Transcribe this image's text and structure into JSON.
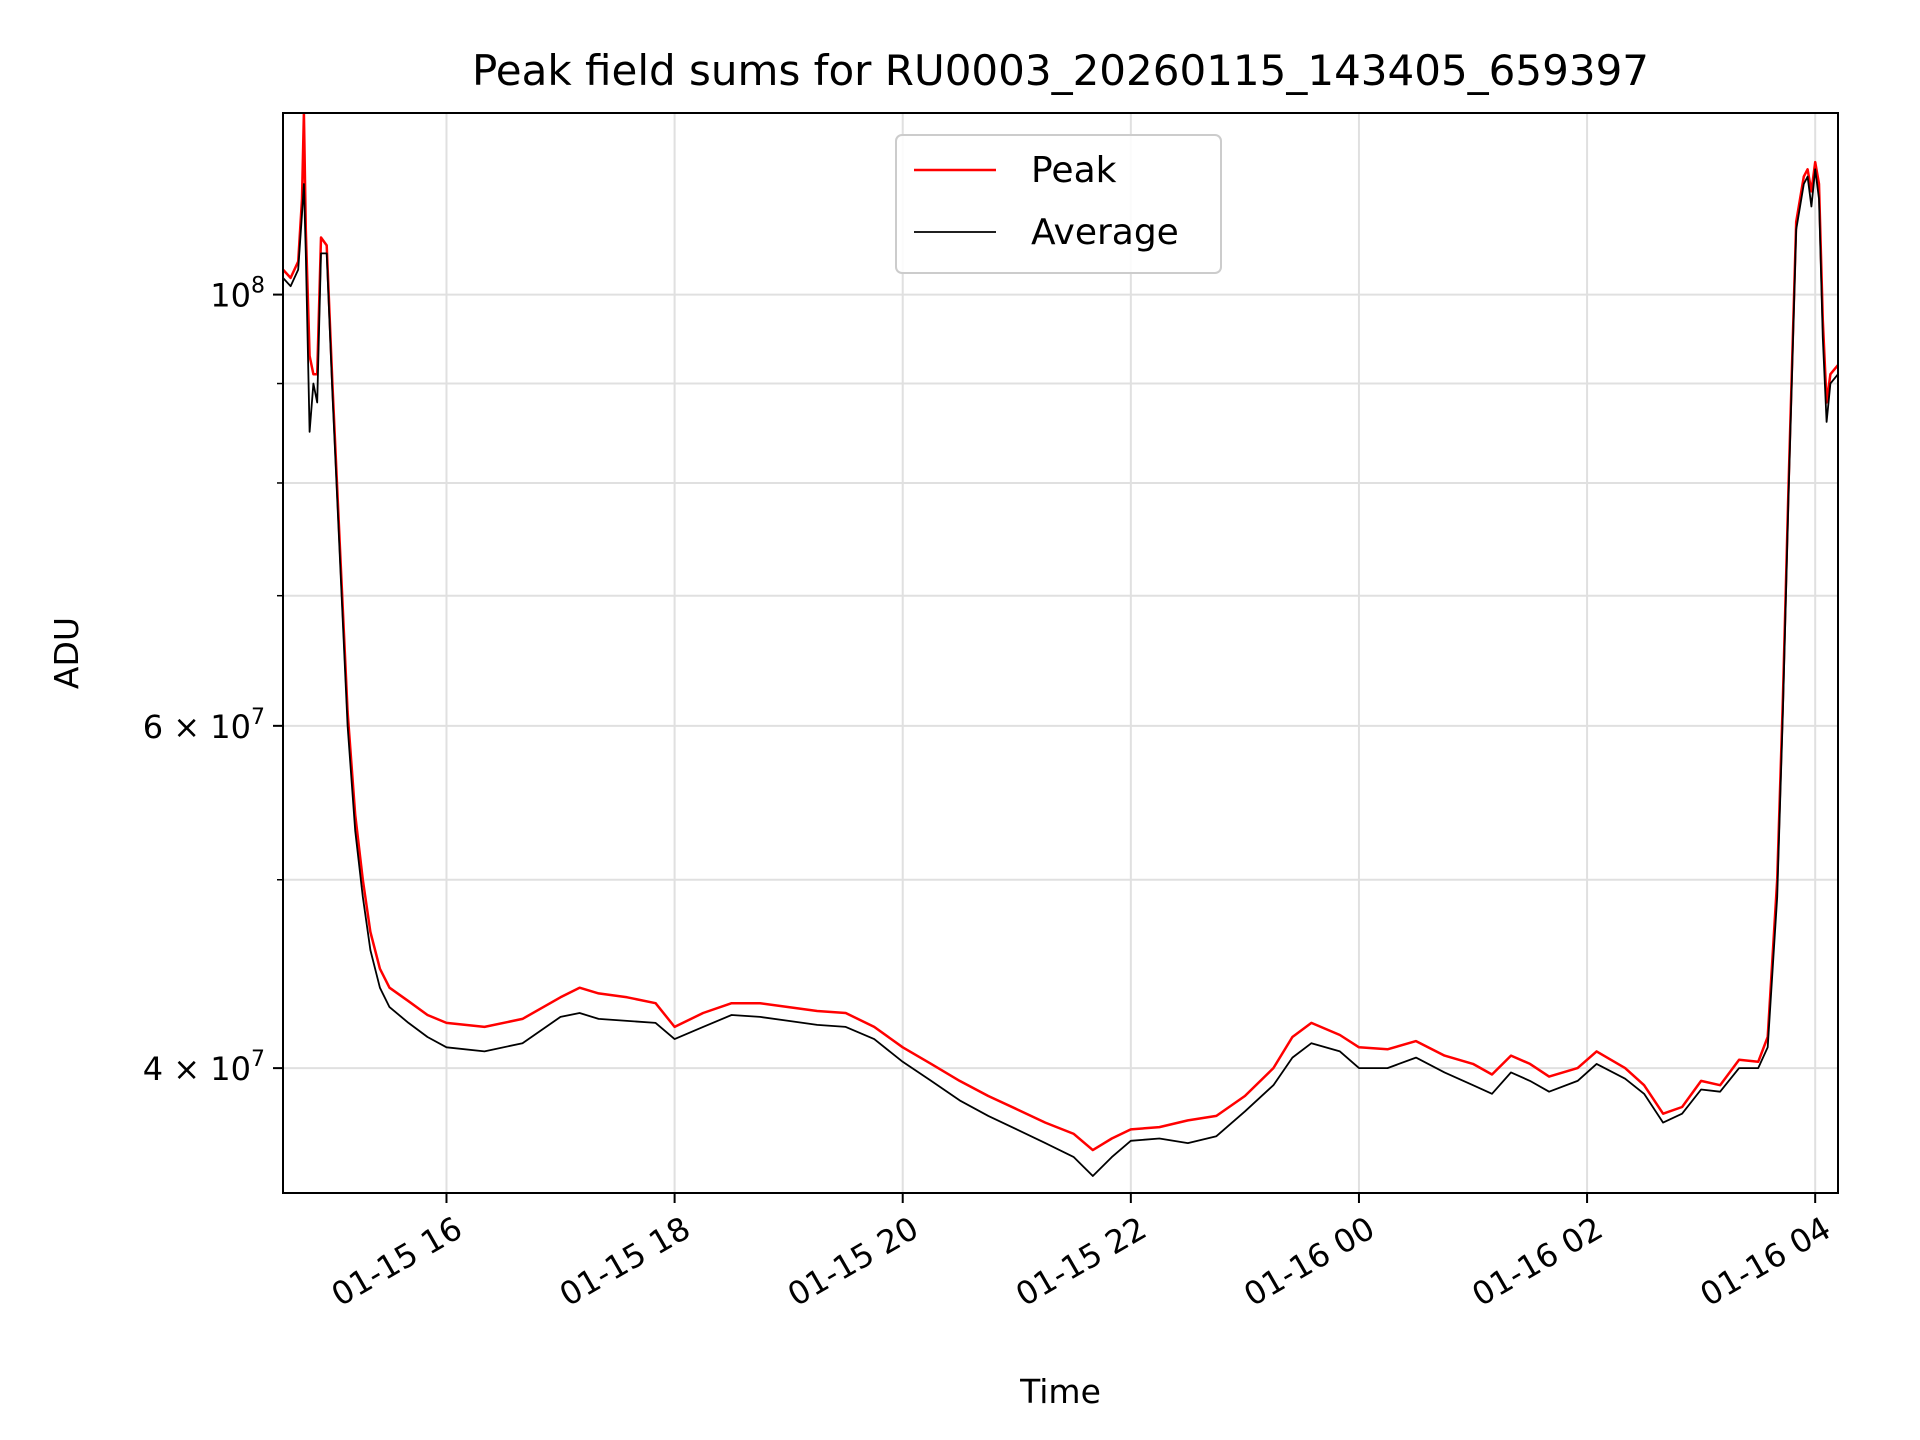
{
  "chart_data": {
    "type": "line",
    "title": "Peak field sums for RU0003_20260115_143405_659397",
    "xlabel": "Time",
    "ylabel": "ADU",
    "yscale": "log",
    "grid": true,
    "legend_placement": "upper center",
    "xlim": [
      "2026-01-15 14:34",
      "2026-01-16 04:12"
    ],
    "ylim": [
      34500000,
      124000000
    ],
    "x_ticks": [
      "2026-01-15 16:00",
      "2026-01-15 18:00",
      "2026-01-15 20:00",
      "2026-01-15 22:00",
      "2026-01-16 00:00",
      "2026-01-16 02:00",
      "2026-01-16 04:00"
    ],
    "x_tick_labels": [
      "01-15 16",
      "01-15 18",
      "01-15 20",
      "01-15 22",
      "01-16 00",
      "01-16 02",
      "01-16 04"
    ],
    "y_tick_labels": [
      {
        "value": 40000000,
        "base": "4 × 10",
        "exp": "7"
      },
      {
        "value": 60000000,
        "base": "6 × 10",
        "exp": "7"
      },
      {
        "value": 100000000,
        "base": "10",
        "exp": "8"
      }
    ],
    "y_minor_ticks": [
      50000000,
      70000000,
      80000000,
      90000000
    ],
    "series": [
      {
        "name": "Peak",
        "color": "#ff0000",
        "points": [
          [
            "2026-01-15 14:34",
            103000000
          ],
          [
            "2026-01-15 14:38",
            102000000
          ],
          [
            "2026-01-15 14:42",
            104000000
          ],
          [
            "2026-01-15 14:44",
            112000000
          ],
          [
            "2026-01-15 14:45",
            124000000
          ],
          [
            "2026-01-15 14:46",
            108000000
          ],
          [
            "2026-01-15 14:48",
            93000000
          ],
          [
            "2026-01-15 14:50",
            91000000
          ],
          [
            "2026-01-15 14:52",
            91000000
          ],
          [
            "2026-01-15 14:54",
            107000000
          ],
          [
            "2026-01-15 14:57",
            106000000
          ],
          [
            "2026-01-15 15:00",
            90000000
          ],
          [
            "2026-01-15 15:04",
            74000000
          ],
          [
            "2026-01-15 15:08",
            61000000
          ],
          [
            "2026-01-15 15:12",
            54000000
          ],
          [
            "2026-01-15 15:16",
            50000000
          ],
          [
            "2026-01-15 15:20",
            47000000
          ],
          [
            "2026-01-15 15:25",
            45000000
          ],
          [
            "2026-01-15 15:30",
            44000000
          ],
          [
            "2026-01-15 15:40",
            43300000
          ],
          [
            "2026-01-15 15:50",
            42600000
          ],
          [
            "2026-01-15 16:00",
            42200000
          ],
          [
            "2026-01-15 16:20",
            42000000
          ],
          [
            "2026-01-15 16:40",
            42400000
          ],
          [
            "2026-01-15 17:00",
            43500000
          ],
          [
            "2026-01-15 17:10",
            44000000
          ],
          [
            "2026-01-15 17:20",
            43700000
          ],
          [
            "2026-01-15 17:35",
            43500000
          ],
          [
            "2026-01-15 17:50",
            43200000
          ],
          [
            "2026-01-15 18:00",
            42000000
          ],
          [
            "2026-01-15 18:15",
            42700000
          ],
          [
            "2026-01-15 18:30",
            43200000
          ],
          [
            "2026-01-15 18:45",
            43200000
          ],
          [
            "2026-01-15 19:00",
            43000000
          ],
          [
            "2026-01-15 19:15",
            42800000
          ],
          [
            "2026-01-15 19:30",
            42700000
          ],
          [
            "2026-01-15 19:45",
            42000000
          ],
          [
            "2026-01-15 20:00",
            41000000
          ],
          [
            "2026-01-15 20:15",
            40200000
          ],
          [
            "2026-01-15 20:30",
            39400000
          ],
          [
            "2026-01-15 20:45",
            38700000
          ],
          [
            "2026-01-15 21:00",
            38100000
          ],
          [
            "2026-01-15 21:15",
            37500000
          ],
          [
            "2026-01-15 21:30",
            37000000
          ],
          [
            "2026-01-15 21:40",
            36300000
          ],
          [
            "2026-01-15 21:50",
            36800000
          ],
          [
            "2026-01-15 22:00",
            37200000
          ],
          [
            "2026-01-15 22:15",
            37300000
          ],
          [
            "2026-01-15 22:30",
            37600000
          ],
          [
            "2026-01-15 22:45",
            37800000
          ],
          [
            "2026-01-15 23:00",
            38700000
          ],
          [
            "2026-01-15 23:15",
            40000000
          ],
          [
            "2026-01-15 23:25",
            41500000
          ],
          [
            "2026-01-15 23:35",
            42200000
          ],
          [
            "2026-01-15 23:50",
            41600000
          ],
          [
            "2026-01-16 00:00",
            41000000
          ],
          [
            "2026-01-16 00:15",
            40900000
          ],
          [
            "2026-01-16 00:30",
            41300000
          ],
          [
            "2026-01-16 00:45",
            40600000
          ],
          [
            "2026-01-16 01:00",
            40200000
          ],
          [
            "2026-01-16 01:10",
            39700000
          ],
          [
            "2026-01-16 01:20",
            40600000
          ],
          [
            "2026-01-16 01:30",
            40200000
          ],
          [
            "2026-01-16 01:40",
            39600000
          ],
          [
            "2026-01-16 01:55",
            40000000
          ],
          [
            "2026-01-16 02:05",
            40800000
          ],
          [
            "2026-01-16 02:20",
            40000000
          ],
          [
            "2026-01-16 02:30",
            39200000
          ],
          [
            "2026-01-16 02:40",
            37900000
          ],
          [
            "2026-01-16 02:50",
            38200000
          ],
          [
            "2026-01-16 03:00",
            39400000
          ],
          [
            "2026-01-16 03:10",
            39200000
          ],
          [
            "2026-01-16 03:20",
            40400000
          ],
          [
            "2026-01-16 03:30",
            40300000
          ],
          [
            "2026-01-16 03:35",
            41500000
          ],
          [
            "2026-01-16 03:40",
            50000000
          ],
          [
            "2026-01-16 03:43",
            62000000
          ],
          [
            "2026-01-16 03:46",
            80000000
          ],
          [
            "2026-01-16 03:50",
            109000000
          ],
          [
            "2026-01-16 03:54",
            115000000
          ],
          [
            "2026-01-16 03:56",
            116000000
          ],
          [
            "2026-01-16 03:58",
            113000000
          ],
          [
            "2026-01-16 04:00",
            117000000
          ],
          [
            "2026-01-16 04:02",
            114000000
          ],
          [
            "2026-01-16 04:04",
            97000000
          ],
          [
            "2026-01-16 04:06",
            88000000
          ],
          [
            "2026-01-16 04:08",
            91000000
          ],
          [
            "2026-01-16 04:12",
            92000000
          ]
        ]
      },
      {
        "name": "Average",
        "color": "#000000",
        "points": [
          [
            "2026-01-15 14:34",
            102000000
          ],
          [
            "2026-01-15 14:38",
            101000000
          ],
          [
            "2026-01-15 14:42",
            103000000
          ],
          [
            "2026-01-15 14:44",
            110000000
          ],
          [
            "2026-01-15 14:45",
            114000000
          ],
          [
            "2026-01-15 14:46",
            105000000
          ],
          [
            "2026-01-15 14:48",
            85000000
          ],
          [
            "2026-01-15 14:50",
            90000000
          ],
          [
            "2026-01-15 14:52",
            88000000
          ],
          [
            "2026-01-15 14:54",
            105000000
          ],
          [
            "2026-01-15 14:57",
            105000000
          ],
          [
            "2026-01-15 15:00",
            89000000
          ],
          [
            "2026-01-15 15:04",
            73000000
          ],
          [
            "2026-01-15 15:08",
            60000000
          ],
          [
            "2026-01-15 15:12",
            53000000
          ],
          [
            "2026-01-15 15:16",
            49000000
          ],
          [
            "2026-01-15 15:20",
            46000000
          ],
          [
            "2026-01-15 15:25",
            44000000
          ],
          [
            "2026-01-15 15:30",
            43000000
          ],
          [
            "2026-01-15 15:40",
            42200000
          ],
          [
            "2026-01-15 15:50",
            41500000
          ],
          [
            "2026-01-15 16:00",
            41000000
          ],
          [
            "2026-01-15 16:20",
            40800000
          ],
          [
            "2026-01-15 16:40",
            41200000
          ],
          [
            "2026-01-15 17:00",
            42500000
          ],
          [
            "2026-01-15 17:10",
            42700000
          ],
          [
            "2026-01-15 17:20",
            42400000
          ],
          [
            "2026-01-15 17:35",
            42300000
          ],
          [
            "2026-01-15 17:50",
            42200000
          ],
          [
            "2026-01-15 18:00",
            41400000
          ],
          [
            "2026-01-15 18:15",
            42000000
          ],
          [
            "2026-01-15 18:30",
            42600000
          ],
          [
            "2026-01-15 18:45",
            42500000
          ],
          [
            "2026-01-15 19:00",
            42300000
          ],
          [
            "2026-01-15 19:15",
            42100000
          ],
          [
            "2026-01-15 19:30",
            42000000
          ],
          [
            "2026-01-15 19:45",
            41400000
          ],
          [
            "2026-01-15 20:00",
            40300000
          ],
          [
            "2026-01-15 20:15",
            39400000
          ],
          [
            "2026-01-15 20:30",
            38500000
          ],
          [
            "2026-01-15 20:45",
            37800000
          ],
          [
            "2026-01-15 21:00",
            37200000
          ],
          [
            "2026-01-15 21:15",
            36600000
          ],
          [
            "2026-01-15 21:30",
            36000000
          ],
          [
            "2026-01-15 21:40",
            35200000
          ],
          [
            "2026-01-15 21:50",
            36000000
          ],
          [
            "2026-01-15 22:00",
            36700000
          ],
          [
            "2026-01-15 22:15",
            36800000
          ],
          [
            "2026-01-15 22:30",
            36600000
          ],
          [
            "2026-01-15 22:45",
            36900000
          ],
          [
            "2026-01-15 23:00",
            38000000
          ],
          [
            "2026-01-15 23:15",
            39200000
          ],
          [
            "2026-01-15 23:25",
            40500000
          ],
          [
            "2026-01-15 23:35",
            41200000
          ],
          [
            "2026-01-15 23:50",
            40800000
          ],
          [
            "2026-01-16 00:00",
            40000000
          ],
          [
            "2026-01-16 00:15",
            40000000
          ],
          [
            "2026-01-16 00:30",
            40500000
          ],
          [
            "2026-01-16 00:45",
            39800000
          ],
          [
            "2026-01-16 01:00",
            39200000
          ],
          [
            "2026-01-16 01:10",
            38800000
          ],
          [
            "2026-01-16 01:20",
            39800000
          ],
          [
            "2026-01-16 01:30",
            39400000
          ],
          [
            "2026-01-16 01:40",
            38900000
          ],
          [
            "2026-01-16 01:55",
            39400000
          ],
          [
            "2026-01-16 02:05",
            40200000
          ],
          [
            "2026-01-16 02:20",
            39500000
          ],
          [
            "2026-01-16 02:30",
            38800000
          ],
          [
            "2026-01-16 02:40",
            37500000
          ],
          [
            "2026-01-16 02:50",
            37900000
          ],
          [
            "2026-01-16 03:00",
            39000000
          ],
          [
            "2026-01-16 03:10",
            38900000
          ],
          [
            "2026-01-16 03:20",
            40000000
          ],
          [
            "2026-01-16 03:30",
            40000000
          ],
          [
            "2026-01-16 03:35",
            41000000
          ],
          [
            "2026-01-16 03:40",
            49000000
          ],
          [
            "2026-01-16 03:43",
            61000000
          ],
          [
            "2026-01-16 03:46",
            79000000
          ],
          [
            "2026-01-16 03:50",
            108000000
          ],
          [
            "2026-01-16 03:54",
            114000000
          ],
          [
            "2026-01-16 03:56",
            115000000
          ],
          [
            "2026-01-16 03:58",
            111000000
          ],
          [
            "2026-01-16 04:00",
            116000000
          ],
          [
            "2026-01-16 04:02",
            112000000
          ],
          [
            "2026-01-16 04:04",
            95000000
          ],
          [
            "2026-01-16 04:06",
            86000000
          ],
          [
            "2026-01-16 04:08",
            90000000
          ],
          [
            "2026-01-16 04:12",
            91000000
          ]
        ]
      }
    ]
  }
}
